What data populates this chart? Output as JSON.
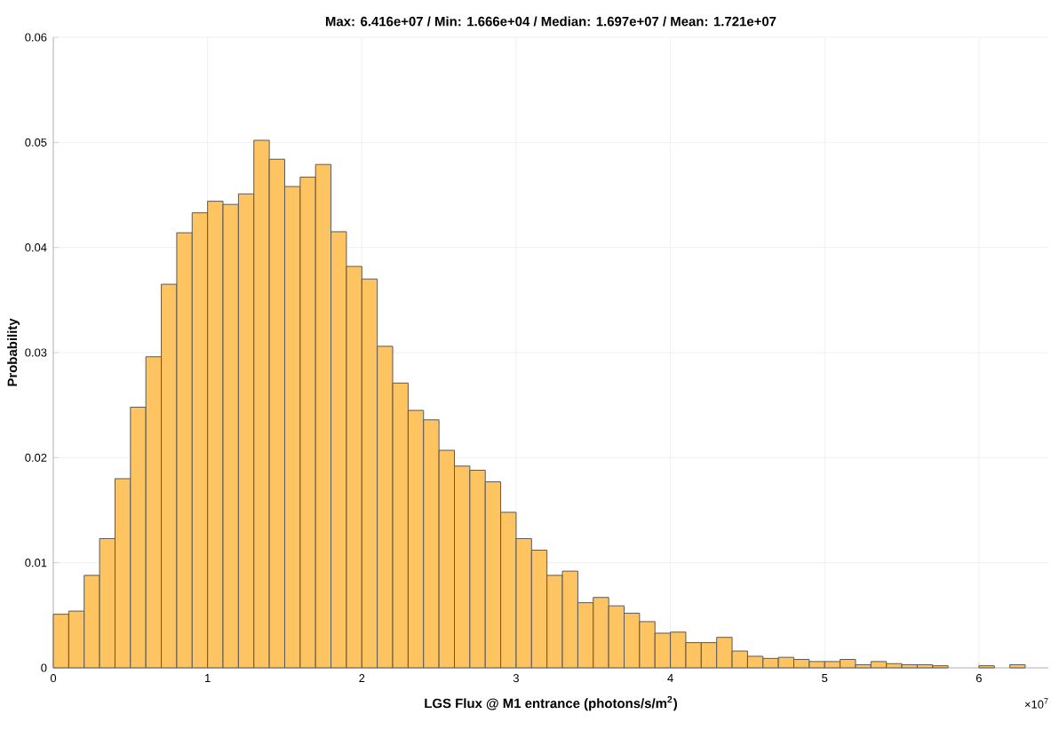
{
  "chart_data": {
    "type": "histogram",
    "title": "Max: 6.416e+07 / Min: 1.666e+04 / Median: 1.697e+07 / Mean: 1.721e+07",
    "xlabel": "LGS Flux @ M1 entrance (photons/s/m$^{2}$)",
    "ylabel": "Probability",
    "annotations": [
      "×10$^{7}$"
    ],
    "bins": [
      0,
      0.1,
      0.2,
      0.3,
      0.4,
      0.5,
      0.6,
      0.7,
      0.8,
      0.9,
      1.0,
      1.1,
      1.2,
      1.3,
      1.4,
      1.5,
      1.6,
      1.7,
      1.8,
      1.9,
      2.0,
      2.1,
      2.2,
      2.3,
      2.4,
      2.5,
      2.6,
      2.7,
      2.8,
      2.9,
      3.0,
      3.1,
      3.2,
      3.3,
      3.4,
      3.5,
      3.6,
      3.7,
      3.8,
      3.9,
      4.0,
      4.1,
      4.2,
      4.3,
      4.4,
      4.5,
      4.6,
      4.7,
      4.8,
      4.9,
      5.0,
      5.1,
      5.2,
      5.3,
      5.4,
      5.5,
      5.6,
      5.7,
      5.8,
      5.9,
      6.0,
      6.1,
      6.2,
      6.3,
      6.4
    ],
    "values": [
      0.0051,
      0.0054,
      0.0088,
      0.0123,
      0.018,
      0.0248,
      0.0296,
      0.0365,
      0.0414,
      0.0433,
      0.0444,
      0.0441,
      0.0451,
      0.0502,
      0.0484,
      0.0458,
      0.0467,
      0.0479,
      0.0415,
      0.0382,
      0.037,
      0.0306,
      0.0271,
      0.0245,
      0.0236,
      0.0207,
      0.0192,
      0.0188,
      0.0177,
      0.0148,
      0.0123,
      0.0112,
      0.0088,
      0.0092,
      0.0062,
      0.0067,
      0.0059,
      0.0052,
      0.0044,
      0.0033,
      0.0034,
      0.0024,
      0.0024,
      0.0029,
      0.0016,
      0.0011,
      0.0009,
      0.001,
      0.0008,
      0.0006,
      0.0006,
      0.0008,
      0.0003,
      0.0006,
      0.0004,
      0.0003,
      0.0003,
      0.0002,
      null,
      null,
      0.0002,
      null,
      0.0003,
      null
    ],
    "color": "#fdc461",
    "xlim": [
      0,
      6.45
    ],
    "ylim": [
      0,
      0.06
    ],
    "xticks": [
      0,
      1,
      2,
      3,
      4,
      5,
      6
    ],
    "yticks": [
      0,
      0.01,
      0.02,
      0.03,
      0.04,
      0.05,
      0.06
    ],
    "grid": true
  }
}
